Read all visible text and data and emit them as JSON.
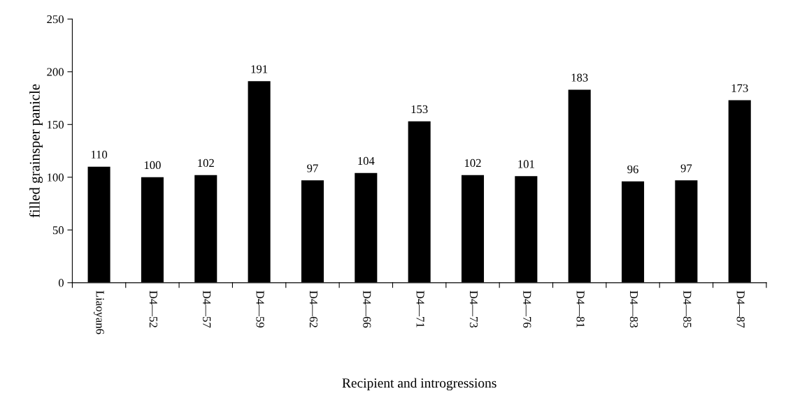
{
  "chart_data": {
    "type": "bar",
    "xlabel": "Recipient and introgressions",
    "ylabel": "filled grainsper panicle",
    "categories": [
      "Liaoyan6",
      "D4—52",
      "D4—57",
      "D4—59",
      "D4—62",
      "D4—66",
      "D4—71",
      "D4—73",
      "D4—76",
      "D4—81",
      "D4—83",
      "D4—85",
      "D4—87"
    ],
    "values": [
      110,
      100,
      102,
      191,
      97,
      104,
      153,
      102,
      101,
      183,
      96,
      97,
      173
    ],
    "color": "#000000",
    "ylim": [
      0,
      250
    ],
    "yticks": [
      0,
      50,
      100,
      150,
      200,
      250
    ],
    "grid": false,
    "data_labels": true
  }
}
